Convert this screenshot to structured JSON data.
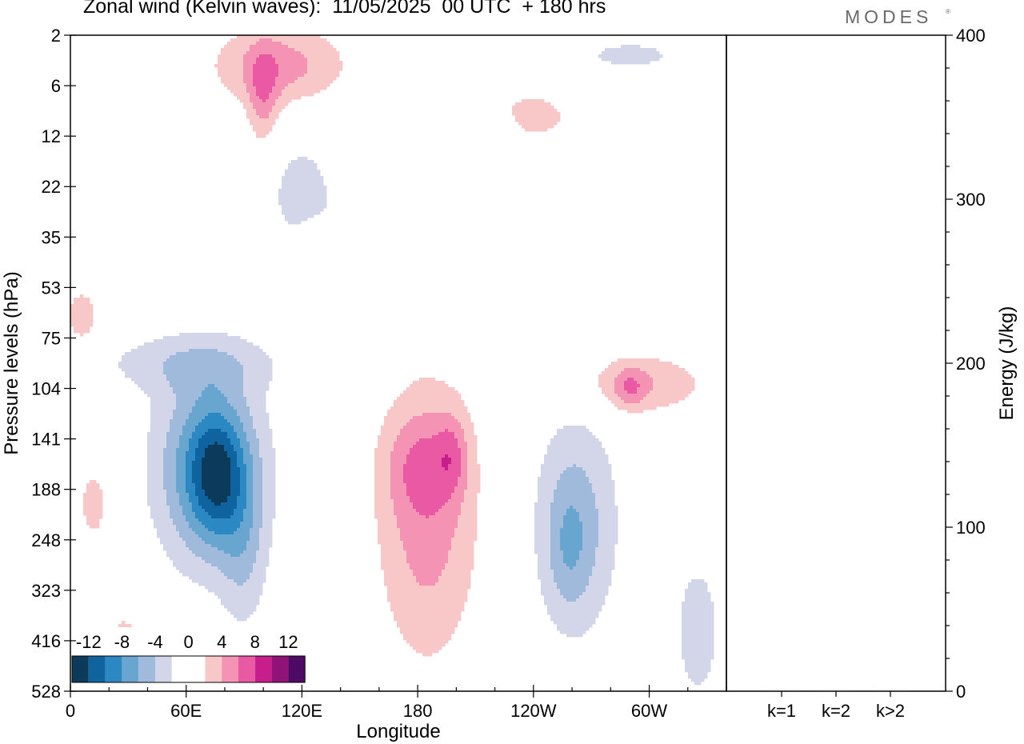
{
  "title": "Zonal wind (Kelvin waves):  11/05/2025  00 UTC  + 180 hrs",
  "brand": "MODES",
  "brand_mark": "®",
  "colors": {
    "neg": [
      "#0c3a5a",
      "#0f64a0",
      "#2b88c2",
      "#68a6d0",
      "#9fbadb",
      "#d2d6e8"
    ],
    "pos": [
      "#f8c8c8",
      "#f593b4",
      "#ea5aa4",
      "#c81e8c",
      "#921378",
      "#4e0a64"
    ],
    "zero": "#ffffff"
  },
  "chart_data": [
    {
      "type": "heatmap",
      "title": "Zonal wind (Kelvin waves):  11/05/2025  00 UTC  + 180 hrs",
      "xlabel": "Longitude",
      "ylabel": "Pressure levels (hPa)",
      "x_ticks": [
        "0",
        "60E",
        "120E",
        "180",
        "120W",
        "60W"
      ],
      "x_tick_values": [
        0,
        60,
        120,
        180,
        240,
        300
      ],
      "xlim": [
        0,
        340
      ],
      "y_ticks": [
        "2",
        "6",
        "12",
        "22",
        "35",
        "53",
        "75",
        "104",
        "141",
        "188",
        "248",
        "323",
        "416",
        "528"
      ],
      "colorbar": {
        "labels": [
          "-12",
          "-8",
          "-4",
          "0",
          "4",
          "8",
          "12"
        ],
        "levels": [
          -14,
          -12,
          -10,
          -8,
          -6,
          -4,
          -2,
          2,
          4,
          6,
          8,
          10,
          12,
          14
        ]
      },
      "blobs": [
        {
          "lon": 72,
          "level": 8.6,
          "dlon": 28,
          "dlev": 1.9,
          "amp": -8
        },
        {
          "lon": 76,
          "level": 8.7,
          "dlon": 14,
          "dlev": 1.2,
          "amp": -6
        },
        {
          "lon": 90,
          "level": 10.3,
          "dlon": 12,
          "dlev": 1.6,
          "amp": -3
        },
        {
          "lon": 262,
          "level": 9.7,
          "dlon": 22,
          "dlev": 2.2,
          "amp": -5
        },
        {
          "lon": 258,
          "level": 10.2,
          "dlon": 10,
          "dlev": 1.2,
          "amp": -2
        },
        {
          "lon": 60,
          "level": 6.5,
          "dlon": 50,
          "dlev": 0.6,
          "amp": -3
        },
        {
          "lon": 120,
          "level": 3.3,
          "dlon": 20,
          "dlev": 1.4,
          "amp": -3
        },
        {
          "lon": 325,
          "level": 11.8,
          "dlon": 12,
          "dlev": 1.4,
          "amp": -3.5
        },
        {
          "lon": 185,
          "level": 9.6,
          "dlon": 26,
          "dlev": 2.8,
          "amp": 5
        },
        {
          "lon": 182,
          "level": 8.5,
          "dlon": 20,
          "dlev": 1.0,
          "amp": 3
        },
        {
          "lon": 198,
          "level": 8.3,
          "dlon": 8,
          "dlev": 0.8,
          "amp": 3
        },
        {
          "lon": 295,
          "level": 6.9,
          "dlon": 34,
          "dlev": 0.6,
          "amp": 4
        },
        {
          "lon": 290,
          "level": 7.0,
          "dlon": 8,
          "dlev": 0.4,
          "amp": 3
        },
        {
          "lon": 108,
          "level": 0.6,
          "dlon": 34,
          "dlev": 0.8,
          "amp": 5
        },
        {
          "lon": 100,
          "level": 1.3,
          "dlon": 8,
          "dlev": 1.0,
          "amp": 4
        },
        {
          "lon": 232,
          "level": 1.6,
          "dlon": 34,
          "dlev": 0.6,
          "amp": 3
        },
        {
          "lon": 6,
          "level": 5.6,
          "dlon": 10,
          "dlev": 0.7,
          "amp": 3
        },
        {
          "lon": 12,
          "level": 9.3,
          "dlon": 8,
          "dlev": 0.8,
          "amp": 3
        },
        {
          "lon": 28,
          "level": 12.0,
          "dlon": 8,
          "dlev": 0.6,
          "amp": 3
        },
        {
          "lon": 126,
          "level": 4.1,
          "dlon": 10,
          "dlev": 0.4,
          "amp": 3
        },
        {
          "lon": 100,
          "level": 4.5,
          "dlon": 10,
          "dlev": 0.8,
          "amp": 2.5
        },
        {
          "lon": 217,
          "level": 1.8,
          "dlon": 14,
          "dlev": 0.6,
          "amp": -2.5
        },
        {
          "lon": 290,
          "level": 0.4,
          "dlon": 34,
          "dlev": 0.4,
          "amp": -2.5
        }
      ]
    },
    {
      "type": "bar",
      "categories": [
        "k=1",
        "k=2",
        "k>2"
      ],
      "values": [
        0.5,
        0.5,
        0.5
      ],
      "xlabel": "",
      "ylabel": "Energy (J/kg)",
      "ylim": [
        0,
        400
      ],
      "y_ticks": [
        "0",
        "100",
        "200",
        "300",
        "400"
      ]
    }
  ]
}
